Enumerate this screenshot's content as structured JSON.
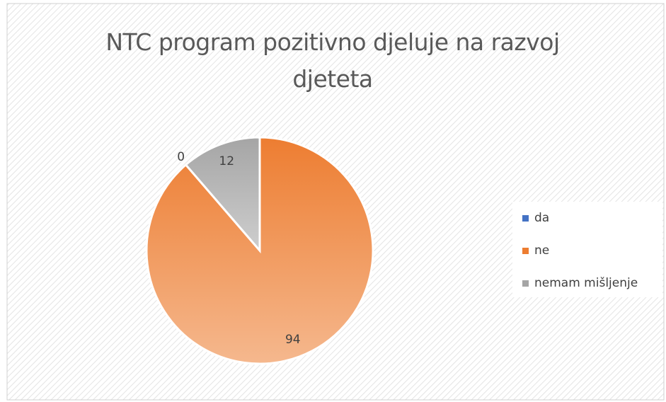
{
  "chart_data": {
    "type": "pie",
    "title": "NTC program pozitivno djeluje na razvoj djeteta",
    "categories": [
      "da",
      "ne",
      "nemam mišljenje"
    ],
    "values": [
      0,
      94,
      12
    ],
    "colors": [
      "#4472c4",
      "#ed7d31",
      "#a5a5a5"
    ],
    "legend": "right"
  }
}
